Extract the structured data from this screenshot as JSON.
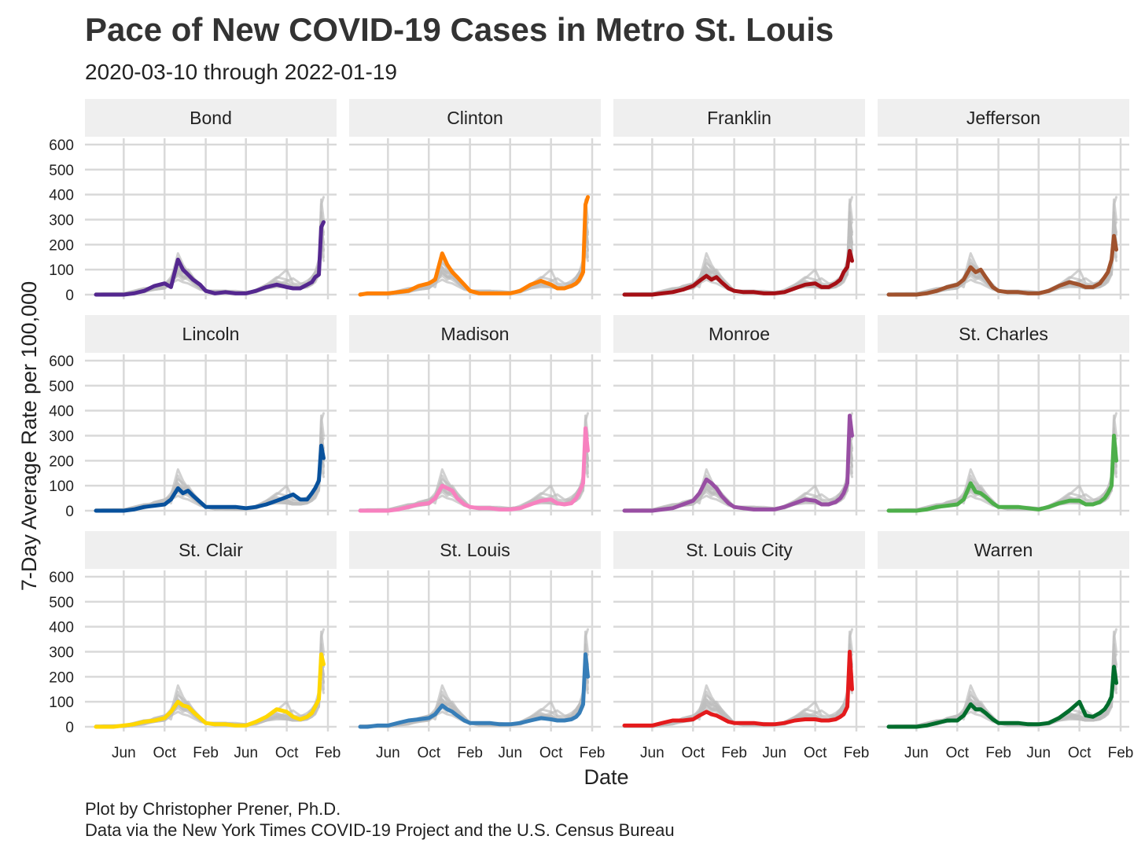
{
  "header": {
    "title": "Pace of New COVID-19 Cases in Metro St. Louis",
    "subtitle": "2020-03-10 through 2022-01-19"
  },
  "caption": {
    "line1": "Plot by Christopher Prener, Ph.D.",
    "line2": "Data via the New York Times COVID-19 Project and the U.S. Census Bureau"
  },
  "chart_data": {
    "type": "line",
    "xlabel": "Date",
    "ylabel": "7-Day Average Rate per 100,000",
    "xlim": [
      "2020-03-10",
      "2022-01-19"
    ],
    "ylim": [
      0,
      600
    ],
    "x_ticks": [
      {
        "label": "Jun",
        "date": "2020-06-01"
      },
      {
        "label": "Oct",
        "date": "2020-10-01"
      },
      {
        "label": "Feb",
        "date": "2021-02-01"
      },
      {
        "label": "Jun",
        "date": "2021-06-01"
      },
      {
        "label": "Oct",
        "date": "2021-10-01"
      },
      {
        "label": "Feb",
        "date": "2022-02-01"
      }
    ],
    "y_ticks": [
      0,
      100,
      200,
      300,
      400,
      500,
      600
    ],
    "grid": true,
    "background_series_color": "#bdbdbd",
    "x": [
      "2020-03-10",
      "2020-04-01",
      "2020-05-01",
      "2020-06-01",
      "2020-07-01",
      "2020-08-01",
      "2020-09-01",
      "2020-10-01",
      "2020-10-20",
      "2020-11-10",
      "2020-11-25",
      "2020-12-10",
      "2020-12-25",
      "2021-01-15",
      "2021-02-01",
      "2021-03-01",
      "2021-04-01",
      "2021-05-01",
      "2021-06-01",
      "2021-07-01",
      "2021-08-01",
      "2021-09-01",
      "2021-10-01",
      "2021-10-20",
      "2021-11-10",
      "2021-12-01",
      "2021-12-15",
      "2021-12-25",
      "2022-01-05",
      "2022-01-12",
      "2022-01-19"
    ],
    "series": [
      {
        "name": "Bond",
        "color": "#54278f",
        "values": [
          0,
          0,
          0,
          0,
          5,
          15,
          35,
          45,
          30,
          140,
          100,
          80,
          60,
          40,
          15,
          5,
          10,
          5,
          5,
          15,
          30,
          40,
          30,
          25,
          25,
          40,
          50,
          70,
          80,
          270,
          290
        ]
      },
      {
        "name": "Clinton",
        "color": "#ff7f00",
        "values": [
          0,
          5,
          5,
          5,
          10,
          15,
          35,
          45,
          60,
          165,
          120,
          90,
          70,
          40,
          15,
          5,
          5,
          5,
          5,
          15,
          40,
          55,
          40,
          25,
          25,
          35,
          45,
          60,
          90,
          360,
          390
        ]
      },
      {
        "name": "Franklin",
        "color": "#a50f15",
        "values": [
          0,
          0,
          0,
          0,
          5,
          10,
          20,
          35,
          55,
          75,
          60,
          70,
          50,
          25,
          15,
          10,
          10,
          5,
          5,
          10,
          25,
          40,
          45,
          30,
          30,
          45,
          60,
          90,
          110,
          175,
          135
        ]
      },
      {
        "name": "Jefferson",
        "color": "#a0522d",
        "values": [
          0,
          0,
          0,
          0,
          5,
          15,
          30,
          40,
          60,
          110,
          90,
          100,
          70,
          30,
          15,
          10,
          10,
          5,
          5,
          15,
          35,
          50,
          40,
          30,
          30,
          45,
          70,
          90,
          140,
          235,
          180
        ]
      },
      {
        "name": "Lincoln",
        "color": "#08519c",
        "values": [
          0,
          0,
          0,
          0,
          5,
          15,
          20,
          25,
          45,
          90,
          70,
          80,
          60,
          35,
          15,
          15,
          15,
          15,
          10,
          15,
          25,
          40,
          55,
          65,
          45,
          45,
          70,
          90,
          120,
          260,
          210
        ]
      },
      {
        "name": "Madison",
        "color": "#f781bf",
        "values": [
          0,
          0,
          0,
          0,
          5,
          15,
          25,
          30,
          50,
          100,
          90,
          80,
          50,
          25,
          15,
          10,
          10,
          5,
          5,
          10,
          25,
          40,
          45,
          30,
          25,
          30,
          50,
          75,
          110,
          330,
          240
        ]
      },
      {
        "name": "Monroe",
        "color": "#984ea3",
        "values": [
          0,
          0,
          0,
          0,
          5,
          10,
          25,
          40,
          70,
          125,
          110,
          90,
          60,
          30,
          15,
          10,
          5,
          5,
          5,
          15,
          30,
          45,
          40,
          25,
          25,
          35,
          50,
          70,
          110,
          380,
          300
        ]
      },
      {
        "name": "St. Charles",
        "color": "#4daf4a",
        "values": [
          0,
          0,
          0,
          0,
          5,
          15,
          20,
          25,
          45,
          110,
          75,
          70,
          55,
          30,
          15,
          15,
          15,
          10,
          5,
          15,
          30,
          40,
          40,
          25,
          25,
          35,
          50,
          70,
          100,
          300,
          200
        ]
      },
      {
        "name": "St. Clair",
        "color": "#ffd700",
        "values": [
          0,
          0,
          0,
          5,
          10,
          20,
          25,
          35,
          60,
          100,
          85,
          80,
          60,
          35,
          15,
          10,
          10,
          5,
          5,
          20,
          40,
          70,
          60,
          40,
          30,
          40,
          55,
          80,
          110,
          290,
          250
        ]
      },
      {
        "name": "St. Louis",
        "color": "#377eb8",
        "values": [
          0,
          0,
          5,
          5,
          15,
          25,
          30,
          35,
          50,
          85,
          70,
          60,
          45,
          25,
          15,
          15,
          15,
          10,
          10,
          15,
          25,
          35,
          30,
          25,
          25,
          30,
          40,
          55,
          90,
          290,
          200
        ]
      },
      {
        "name": "St. Louis City",
        "color": "#e41a1c",
        "values": [
          5,
          5,
          5,
          5,
          15,
          25,
          25,
          30,
          45,
          60,
          50,
          45,
          35,
          20,
          15,
          15,
          15,
          10,
          10,
          15,
          25,
          30,
          30,
          25,
          25,
          30,
          40,
          50,
          80,
          300,
          150
        ]
      },
      {
        "name": "Warren",
        "color": "#006d2c",
        "values": [
          0,
          0,
          0,
          0,
          5,
          15,
          25,
          25,
          45,
          90,
          70,
          70,
          55,
          30,
          15,
          15,
          15,
          10,
          10,
          15,
          35,
          65,
          100,
          45,
          40,
          55,
          70,
          90,
          120,
          240,
          175
        ]
      }
    ]
  }
}
